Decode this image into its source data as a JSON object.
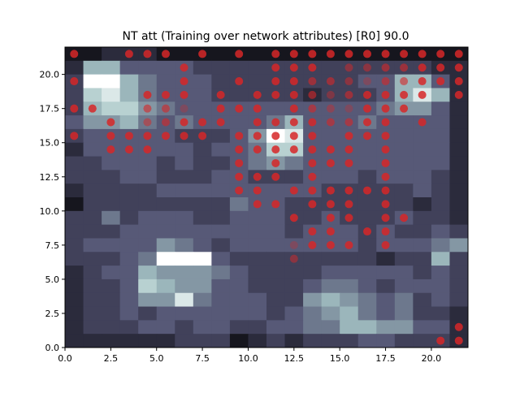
{
  "chart_data": {
    "type": "heatmap",
    "title": "NT att (Training over network attributes) [R0] 90.0",
    "xlabel": "",
    "ylabel": "",
    "xlim": [
      0,
      22
    ],
    "ylim": [
      0,
      22
    ],
    "x_ticks": [
      "0.0",
      "2.5",
      "5.0",
      "7.5",
      "10.0",
      "12.5",
      "15.0",
      "17.5",
      "20.0"
    ],
    "y_ticks": [
      "0.0",
      "2.5",
      "5.0",
      "7.5",
      "10.0",
      "12.5",
      "15.0",
      "17.5",
      "20.0"
    ],
    "grid": false,
    "colormap": "bone",
    "marker_color": "#d62728",
    "grid_values": [
      [
        1,
        1,
        2,
        2,
        2,
        1,
        1,
        1,
        1,
        1,
        1,
        1,
        1,
        1,
        1,
        1,
        1,
        1,
        1,
        1,
        1,
        1
      ],
      [
        2,
        7,
        7,
        4,
        4,
        4,
        4,
        3,
        3,
        3,
        3,
        3,
        3,
        3,
        3,
        3,
        3,
        3,
        3,
        3,
        2,
        2
      ],
      [
        3,
        10,
        10,
        7,
        5,
        4,
        4,
        4,
        3,
        3,
        3,
        3,
        3,
        3,
        3,
        3,
        4,
        4,
        7,
        7,
        4,
        2
      ],
      [
        3,
        8,
        9,
        7,
        5,
        4,
        4,
        4,
        3,
        3,
        3,
        3,
        3,
        2,
        3,
        3,
        3,
        4,
        7,
        9,
        7,
        2
      ],
      [
        3,
        7,
        8,
        8,
        6,
        5,
        4,
        4,
        4,
        4,
        4,
        4,
        4,
        4,
        4,
        4,
        4,
        5,
        6,
        6,
        4,
        2
      ],
      [
        4,
        6,
        6,
        7,
        5,
        4,
        5,
        4,
        4,
        4,
        4,
        5,
        7,
        4,
        4,
        4,
        5,
        4,
        4,
        4,
        4,
        2
      ],
      [
        3,
        4,
        4,
        4,
        4,
        4,
        3,
        3,
        3,
        4,
        6,
        10,
        9,
        4,
        4,
        4,
        4,
        4,
        4,
        4,
        4,
        2
      ],
      [
        2,
        4,
        4,
        4,
        4,
        4,
        4,
        3,
        4,
        4,
        5,
        8,
        8,
        4,
        4,
        4,
        4,
        4,
        4,
        4,
        4,
        2
      ],
      [
        3,
        3,
        4,
        4,
        4,
        3,
        4,
        3,
        3,
        4,
        5,
        6,
        5,
        4,
        4,
        4,
        4,
        4,
        4,
        4,
        4,
        2
      ],
      [
        3,
        3,
        3,
        4,
        4,
        3,
        3,
        3,
        4,
        4,
        3,
        3,
        3,
        4,
        4,
        4,
        3,
        4,
        4,
        4,
        3,
        2
      ],
      [
        2,
        3,
        3,
        3,
        3,
        4,
        4,
        4,
        4,
        4,
        4,
        4,
        4,
        4,
        3,
        3,
        3,
        3,
        3,
        4,
        3,
        2
      ],
      [
        1,
        3,
        3,
        3,
        3,
        3,
        3,
        3,
        3,
        5,
        4,
        4,
        3,
        3,
        3,
        3,
        3,
        3,
        3,
        2,
        3,
        2
      ],
      [
        3,
        3,
        5,
        3,
        4,
        4,
        4,
        3,
        3,
        4,
        4,
        4,
        3,
        3,
        4,
        3,
        3,
        3,
        4,
        3,
        3,
        2
      ],
      [
        3,
        3,
        3,
        4,
        4,
        4,
        4,
        4,
        4,
        4,
        4,
        4,
        3,
        4,
        4,
        4,
        3,
        4,
        3,
        3,
        4,
        3
      ],
      [
        3,
        4,
        4,
        4,
        4,
        6,
        5,
        4,
        3,
        4,
        4,
        4,
        4,
        4,
        4,
        4,
        3,
        4,
        4,
        4,
        5,
        6
      ],
      [
        3,
        3,
        3,
        4,
        5,
        10,
        10,
        10,
        4,
        3,
        3,
        3,
        3,
        3,
        3,
        3,
        3,
        2,
        3,
        3,
        7,
        3
      ],
      [
        2,
        3,
        4,
        4,
        7,
        6,
        6,
        6,
        5,
        4,
        3,
        3,
        3,
        3,
        4,
        4,
        4,
        4,
        4,
        3,
        4,
        3
      ],
      [
        2,
        3,
        3,
        4,
        8,
        7,
        6,
        6,
        4,
        4,
        3,
        3,
        3,
        4,
        5,
        5,
        4,
        3,
        4,
        4,
        4,
        3
      ],
      [
        2,
        3,
        3,
        4,
        6,
        6,
        9,
        5,
        4,
        4,
        4,
        3,
        3,
        6,
        7,
        6,
        5,
        4,
        5,
        3,
        4,
        3
      ],
      [
        2,
        3,
        3,
        4,
        3,
        4,
        4,
        4,
        4,
        4,
        4,
        3,
        4,
        5,
        6,
        7,
        5,
        4,
        5,
        3,
        3,
        2
      ],
      [
        2,
        3,
        3,
        3,
        4,
        4,
        3,
        4,
        4,
        3,
        3,
        4,
        4,
        5,
        5,
        7,
        7,
        6,
        6,
        4,
        4,
        2
      ],
      [
        2,
        2,
        2,
        2,
        2,
        2,
        3,
        3,
        3,
        1,
        2,
        3,
        2,
        3,
        3,
        3,
        4,
        4,
        3,
        3,
        3,
        2
      ],
      [
        1,
        1,
        1,
        1,
        1,
        1,
        1,
        1,
        1,
        1,
        1,
        1,
        1,
        1,
        1,
        1,
        1,
        1,
        1,
        1,
        1,
        1
      ]
    ],
    "points": [
      {
        "x": 0.5,
        "y": 21.5,
        "a": 0.85
      },
      {
        "x": 3.5,
        "y": 21.5,
        "a": 0.85
      },
      {
        "x": 4.5,
        "y": 21.5,
        "a": 0.85
      },
      {
        "x": 5.5,
        "y": 21.5,
        "a": 0.85
      },
      {
        "x": 7.5,
        "y": 21.5,
        "a": 0.85
      },
      {
        "x": 9.5,
        "y": 21.5,
        "a": 0.85
      },
      {
        "x": 11.5,
        "y": 21.5,
        "a": 0.85
      },
      {
        "x": 12.5,
        "y": 21.5,
        "a": 0.85
      },
      {
        "x": 13.5,
        "y": 21.5,
        "a": 0.85
      },
      {
        "x": 14.5,
        "y": 21.5,
        "a": 0.85
      },
      {
        "x": 15.5,
        "y": 21.5,
        "a": 0.85
      },
      {
        "x": 16.5,
        "y": 21.5,
        "a": 0.85
      },
      {
        "x": 17.5,
        "y": 21.5,
        "a": 0.85
      },
      {
        "x": 18.5,
        "y": 21.5,
        "a": 0.85
      },
      {
        "x": 19.5,
        "y": 21.5,
        "a": 0.85
      },
      {
        "x": 20.5,
        "y": 21.5,
        "a": 0.85
      },
      {
        "x": 21.5,
        "y": 21.5,
        "a": 0.85
      },
      {
        "x": 6.5,
        "y": 20.5,
        "a": 0.85
      },
      {
        "x": 11.5,
        "y": 20.5,
        "a": 0.85
      },
      {
        "x": 12.5,
        "y": 20.5,
        "a": 0.85
      },
      {
        "x": 13.5,
        "y": 20.5,
        "a": 0.85
      },
      {
        "x": 15.5,
        "y": 20.5,
        "a": 0.5
      },
      {
        "x": 16.5,
        "y": 20.5,
        "a": 0.5
      },
      {
        "x": 17.5,
        "y": 20.5,
        "a": 0.6
      },
      {
        "x": 18.5,
        "y": 20.5,
        "a": 0.6
      },
      {
        "x": 19.5,
        "y": 20.5,
        "a": 0.85
      },
      {
        "x": 20.5,
        "y": 20.5,
        "a": 0.85
      },
      {
        "x": 21.5,
        "y": 20.5,
        "a": 0.85
      },
      {
        "x": 0.5,
        "y": 19.5,
        "a": 0.85
      },
      {
        "x": 6.5,
        "y": 19.5,
        "a": 0.85
      },
      {
        "x": 9.5,
        "y": 19.5,
        "a": 0.85
      },
      {
        "x": 11.5,
        "y": 19.5,
        "a": 0.85
      },
      {
        "x": 12.5,
        "y": 19.5,
        "a": 0.85
      },
      {
        "x": 13.5,
        "y": 19.5,
        "a": 0.6
      },
      {
        "x": 14.5,
        "y": 19.5,
        "a": 0.6
      },
      {
        "x": 15.5,
        "y": 19.5,
        "a": 0.5
      },
      {
        "x": 16.5,
        "y": 19.5,
        "a": 0.3
      },
      {
        "x": 17.5,
        "y": 19.5,
        "a": 0.6
      },
      {
        "x": 18.5,
        "y": 19.5,
        "a": 0.6
      },
      {
        "x": 19.5,
        "y": 19.5,
        "a": 0.85
      },
      {
        "x": 20.5,
        "y": 19.5,
        "a": 0.85
      },
      {
        "x": 21.5,
        "y": 19.5,
        "a": 0.85
      },
      {
        "x": 4.5,
        "y": 18.5,
        "a": 0.85
      },
      {
        "x": 5.5,
        "y": 18.5,
        "a": 0.85
      },
      {
        "x": 6.5,
        "y": 18.5,
        "a": 0.85
      },
      {
        "x": 8.5,
        "y": 18.5,
        "a": 0.85
      },
      {
        "x": 10.5,
        "y": 18.5,
        "a": 0.85
      },
      {
        "x": 11.5,
        "y": 18.5,
        "a": 0.85
      },
      {
        "x": 12.5,
        "y": 18.5,
        "a": 0.85
      },
      {
        "x": 13.5,
        "y": 18.5,
        "a": 0.6
      },
      {
        "x": 14.5,
        "y": 18.5,
        "a": 0.4
      },
      {
        "x": 15.5,
        "y": 18.5,
        "a": 0.6
      },
      {
        "x": 16.5,
        "y": 18.5,
        "a": 0.85
      },
      {
        "x": 17.5,
        "y": 18.5,
        "a": 0.85
      },
      {
        "x": 18.5,
        "y": 18.5,
        "a": 0.85
      },
      {
        "x": 19.5,
        "y": 18.5,
        "a": 0.85
      },
      {
        "x": 21.5,
        "y": 18.5,
        "a": 0.85
      },
      {
        "x": 0.5,
        "y": 17.5,
        "a": 0.85
      },
      {
        "x": 1.5,
        "y": 17.5,
        "a": 0.85
      },
      {
        "x": 4.5,
        "y": 17.5,
        "a": 0.6
      },
      {
        "x": 5.5,
        "y": 17.5,
        "a": 0.6
      },
      {
        "x": 6.5,
        "y": 17.5,
        "a": 0.3
      },
      {
        "x": 8.5,
        "y": 17.5,
        "a": 0.85
      },
      {
        "x": 9.5,
        "y": 17.5,
        "a": 0.85
      },
      {
        "x": 10.5,
        "y": 17.5,
        "a": 0.85
      },
      {
        "x": 12.5,
        "y": 17.5,
        "a": 0.85
      },
      {
        "x": 13.5,
        "y": 17.5,
        "a": 0.6
      },
      {
        "x": 14.5,
        "y": 17.5,
        "a": 0.4
      },
      {
        "x": 15.5,
        "y": 17.5,
        "a": 0.3
      },
      {
        "x": 16.5,
        "y": 17.5,
        "a": 0.85
      },
      {
        "x": 17.5,
        "y": 17.5,
        "a": 0.85
      },
      {
        "x": 18.5,
        "y": 17.5,
        "a": 0.85
      },
      {
        "x": 2.5,
        "y": 16.5,
        "a": 0.85
      },
      {
        "x": 4.5,
        "y": 16.5,
        "a": 0.5
      },
      {
        "x": 5.5,
        "y": 16.5,
        "a": 0.6
      },
      {
        "x": 6.5,
        "y": 16.5,
        "a": 0.85
      },
      {
        "x": 7.5,
        "y": 16.5,
        "a": 0.85
      },
      {
        "x": 8.5,
        "y": 16.5,
        "a": 0.85
      },
      {
        "x": 10.5,
        "y": 16.5,
        "a": 0.85
      },
      {
        "x": 11.5,
        "y": 16.5,
        "a": 0.85
      },
      {
        "x": 12.5,
        "y": 16.5,
        "a": 0.85
      },
      {
        "x": 13.5,
        "y": 16.5,
        "a": 0.85
      },
      {
        "x": 14.5,
        "y": 16.5,
        "a": 0.6
      },
      {
        "x": 15.5,
        "y": 16.5,
        "a": 0.6
      },
      {
        "x": 16.5,
        "y": 16.5,
        "a": 0.85
      },
      {
        "x": 17.5,
        "y": 16.5,
        "a": 0.85
      },
      {
        "x": 19.5,
        "y": 16.5,
        "a": 0.85
      },
      {
        "x": 2.5,
        "y": 15.5,
        "a": 0.85
      },
      {
        "x": 3.5,
        "y": 15.5,
        "a": 0.85
      },
      {
        "x": 4.5,
        "y": 15.5,
        "a": 0.85
      },
      {
        "x": 5.5,
        "y": 15.5,
        "a": 0.85
      },
      {
        "x": 6.5,
        "y": 15.5,
        "a": 0.85
      },
      {
        "x": 7.5,
        "y": 15.5,
        "a": 0.85
      },
      {
        "x": 0.5,
        "y": 15.5,
        "a": 0.85
      },
      {
        "x": 9.5,
        "y": 15.5,
        "a": 0.85
      },
      {
        "x": 10.5,
        "y": 15.5,
        "a": 0.85
      },
      {
        "x": 11.5,
        "y": 15.5,
        "a": 0.85
      },
      {
        "x": 12.5,
        "y": 15.5,
        "a": 0.85
      },
      {
        "x": 13.5,
        "y": 15.5,
        "a": 0.85
      },
      {
        "x": 15.5,
        "y": 15.5,
        "a": 0.85
      },
      {
        "x": 16.5,
        "y": 15.5,
        "a": 0.85
      },
      {
        "x": 17.5,
        "y": 15.5,
        "a": 0.85
      },
      {
        "x": 2.5,
        "y": 14.5,
        "a": 0.85
      },
      {
        "x": 3.5,
        "y": 14.5,
        "a": 0.85
      },
      {
        "x": 4.5,
        "y": 14.5,
        "a": 0.85
      },
      {
        "x": 9.5,
        "y": 14.5,
        "a": 0.85
      },
      {
        "x": 10.5,
        "y": 14.5,
        "a": 0.85
      },
      {
        "x": 11.5,
        "y": 14.5,
        "a": 0.85
      },
      {
        "x": 12.5,
        "y": 14.5,
        "a": 0.85
      },
      {
        "x": 13.5,
        "y": 14.5,
        "a": 0.85
      },
      {
        "x": 14.5,
        "y": 14.5,
        "a": 0.85
      },
      {
        "x": 15.5,
        "y": 14.5,
        "a": 0.85
      },
      {
        "x": 17.5,
        "y": 14.5,
        "a": 0.85
      },
      {
        "x": 9.5,
        "y": 13.5,
        "a": 0.85
      },
      {
        "x": 11.5,
        "y": 13.5,
        "a": 0.85
      },
      {
        "x": 13.5,
        "y": 13.5,
        "a": 0.85
      },
      {
        "x": 14.5,
        "y": 13.5,
        "a": 0.85
      },
      {
        "x": 15.5,
        "y": 13.5,
        "a": 0.85
      },
      {
        "x": 17.5,
        "y": 13.5,
        "a": 0.85
      },
      {
        "x": 9.5,
        "y": 12.5,
        "a": 0.85
      },
      {
        "x": 10.5,
        "y": 12.5,
        "a": 0.85
      },
      {
        "x": 11.5,
        "y": 12.5,
        "a": 0.85
      },
      {
        "x": 13.5,
        "y": 12.5,
        "a": 0.85
      },
      {
        "x": 17.5,
        "y": 12.5,
        "a": 0.85
      },
      {
        "x": 9.5,
        "y": 11.5,
        "a": 0.85
      },
      {
        "x": 10.5,
        "y": 11.5,
        "a": 0.85
      },
      {
        "x": 12.5,
        "y": 11.5,
        "a": 0.85
      },
      {
        "x": 13.5,
        "y": 11.5,
        "a": 0.85
      },
      {
        "x": 14.5,
        "y": 11.5,
        "a": 0.85
      },
      {
        "x": 15.5,
        "y": 11.5,
        "a": 0.85
      },
      {
        "x": 16.5,
        "y": 11.5,
        "a": 0.85
      },
      {
        "x": 17.5,
        "y": 11.5,
        "a": 0.85
      },
      {
        "x": 10.5,
        "y": 10.5,
        "a": 0.85
      },
      {
        "x": 11.5,
        "y": 10.5,
        "a": 0.85
      },
      {
        "x": 13.5,
        "y": 10.5,
        "a": 0.85
      },
      {
        "x": 14.5,
        "y": 10.5,
        "a": 0.85
      },
      {
        "x": 15.5,
        "y": 10.5,
        "a": 0.85
      },
      {
        "x": 17.5,
        "y": 10.5,
        "a": 0.85
      },
      {
        "x": 12.5,
        "y": 9.5,
        "a": 0.85
      },
      {
        "x": 14.5,
        "y": 9.5,
        "a": 0.85
      },
      {
        "x": 15.5,
        "y": 9.5,
        "a": 0.85
      },
      {
        "x": 17.5,
        "y": 9.5,
        "a": 0.85
      },
      {
        "x": 18.5,
        "y": 9.5,
        "a": 0.85
      },
      {
        "x": 13.5,
        "y": 8.5,
        "a": 0.85
      },
      {
        "x": 14.5,
        "y": 8.5,
        "a": 0.85
      },
      {
        "x": 16.5,
        "y": 8.5,
        "a": 0.85
      },
      {
        "x": 17.5,
        "y": 8.5,
        "a": 0.85
      },
      {
        "x": 12.5,
        "y": 7.5,
        "a": 0.3
      },
      {
        "x": 13.5,
        "y": 7.5,
        "a": 0.85
      },
      {
        "x": 14.5,
        "y": 7.5,
        "a": 0.85
      },
      {
        "x": 15.5,
        "y": 7.5,
        "a": 0.85
      },
      {
        "x": 17.5,
        "y": 7.5,
        "a": 0.85
      },
      {
        "x": 12.5,
        "y": 6.5,
        "a": 0.5
      },
      {
        "x": 20.5,
        "y": 0.5,
        "a": 0.85
      },
      {
        "x": 21.5,
        "y": 0.5,
        "a": 0.85
      },
      {
        "x": 21.5,
        "y": 1.5,
        "a": 0.85
      }
    ]
  }
}
